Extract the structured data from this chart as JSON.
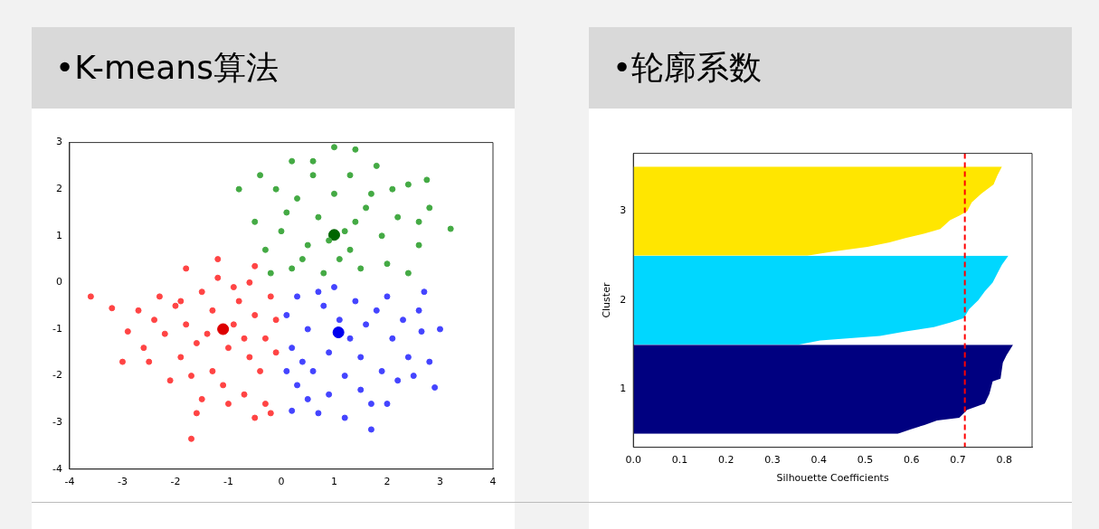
{
  "chart_data": [
    {
      "type": "scatter",
      "title": "•K-means算法",
      "marker": "circle",
      "grid": false,
      "legend": false,
      "xlim": [
        -4,
        4
      ],
      "xticks": [
        -4,
        -3,
        -2,
        -1,
        0,
        1,
        2,
        3,
        4
      ],
      "ylim": [
        -4,
        3
      ],
      "yticks": [
        -4,
        -3,
        -2,
        -1,
        0,
        1,
        2,
        3
      ],
      "series": [
        {
          "color": "#ff4444",
          "x": [
            -1.5,
            -0.8,
            -1.3,
            -0.5,
            -1.8,
            -0.3,
            -1.0,
            -1.6,
            -0.6,
            -1.3,
            -2.0,
            -0.2,
            -1.9,
            -0.9,
            -1.4,
            -0.7,
            -2.2,
            -0.4,
            -1.1,
            -1.7,
            -0.9,
            -1.2,
            -0.6,
            -2.3,
            -2.6,
            -1.5,
            -0.7,
            -0.3,
            -0.1,
            -0.1,
            -2.1,
            -1.8,
            -2.4,
            -2.5,
            -2.9,
            -3.0,
            -3.6,
            -3.2,
            -1.7,
            -1.0,
            -0.5,
            -0.2,
            -1.6,
            -1.2,
            -0.5,
            -2.7,
            -1.9
          ],
          "values": [
            -0.2,
            -0.4,
            -0.6,
            -0.7,
            -0.9,
            -1.2,
            -1.4,
            -1.3,
            -1.6,
            -1.9,
            -0.5,
            -0.3,
            -1.6,
            -0.9,
            -1.1,
            -1.2,
            -1.1,
            -1.9,
            -2.2,
            -2.0,
            -0.1,
            0.1,
            0.0,
            -0.3,
            -1.4,
            -2.5,
            -2.4,
            -2.6,
            -0.8,
            -1.5,
            -2.1,
            0.3,
            -0.8,
            -1.7,
            -1.05,
            -1.7,
            -0.3,
            -0.55,
            -3.35,
            -2.6,
            -2.9,
            -2.8,
            -2.8,
            0.5,
            0.35,
            -0.6,
            -0.4
          ]
        },
        {
          "color": "#4444ff",
          "x": [
            0.3,
            0.8,
            1.4,
            2.0,
            0.5,
            1.6,
            2.1,
            0.2,
            0.9,
            1.5,
            0.6,
            1.2,
            1.9,
            0.3,
            0.9,
            1.5,
            2.3,
            2.4,
            0.1,
            1.1,
            1.8,
            0.7,
            1.3,
            0.4,
            2.2,
            1.7,
            0.7,
            0.2,
            1.2,
            1.7,
            2.6,
            2.7,
            2.65,
            2.8,
            2.9,
            3.0,
            2.5,
            1.0,
            0.1,
            2.0,
            0.5
          ],
          "values": [
            -0.3,
            -0.5,
            -0.4,
            -0.3,
            -1.0,
            -0.9,
            -1.2,
            -1.4,
            -1.5,
            -1.6,
            -1.9,
            -2.0,
            -1.9,
            -2.2,
            -2.4,
            -2.3,
            -0.8,
            -1.6,
            -0.7,
            -0.8,
            -0.6,
            -0.2,
            -1.2,
            -1.7,
            -2.1,
            -2.6,
            -2.8,
            -2.75,
            -2.9,
            -3.15,
            -0.6,
            -0.2,
            -1.05,
            -1.7,
            -2.25,
            -1.0,
            -2.0,
            -0.1,
            -1.9,
            -2.6,
            -2.5
          ]
        },
        {
          "color": "#44aa44",
          "x": [
            0.2,
            0.8,
            1.5,
            2.0,
            0.5,
            1.3,
            1.9,
            0.0,
            0.7,
            1.4,
            2.2,
            0.3,
            1.0,
            1.7,
            0.6,
            1.3,
            2.1,
            -0.3,
            -0.5,
            -0.8,
            -0.4,
            0.2,
            0.6,
            1.0,
            1.4,
            1.8,
            2.75,
            2.8,
            3.2,
            2.6,
            2.4,
            2.6,
            -0.2,
            0.4,
            1.1,
            1.2,
            0.9,
            1.6,
            0.1,
            2.4,
            -0.1
          ],
          "values": [
            0.3,
            0.2,
            0.3,
            0.4,
            0.8,
            0.7,
            1.0,
            1.1,
            1.4,
            1.3,
            1.4,
            1.8,
            1.9,
            1.9,
            2.3,
            2.3,
            2.0,
            0.7,
            1.3,
            2.0,
            2.3,
            2.6,
            2.6,
            2.9,
            2.85,
            2.5,
            2.2,
            1.6,
            1.15,
            0.8,
            0.2,
            1.3,
            0.2,
            0.5,
            0.5,
            1.1,
            0.9,
            1.6,
            1.5,
            2.1,
            2.0
          ]
        },
        {
          "color": "#dd0000",
          "x": [
            -1.1
          ],
          "values": [
            -1.0
          ]
        },
        {
          "color": "#0000ee",
          "x": [
            1.08
          ],
          "values": [
            -1.07
          ]
        },
        {
          "color": "#006600",
          "x": [
            1.0
          ],
          "values": [
            1.02
          ]
        }
      ]
    },
    {
      "type": "area",
      "orientation": "horizontal",
      "title": "•轮廓系数",
      "xlabel": "Silhouette Coefficients",
      "ylabel": "Cluster",
      "grid": false,
      "legend": false,
      "xlim": [
        0,
        0.86
      ],
      "xticks": [
        {
          "value": 0,
          "label": "0.0"
        },
        0.1,
        0.2,
        0.3,
        0.4,
        0.5,
        0.6,
        0.7,
        0.8
      ],
      "ylim": [
        0.35,
        3.65
      ],
      "yticks": [
        1,
        2,
        3
      ],
      "ref_lines": [
        {
          "axis": "x",
          "value": 0.715,
          "color": "#ff0000",
          "line_style": "dashed"
        }
      ],
      "series": [
        {
          "color": "#000080",
          "x": [
            1.5,
            1.385,
            1.3,
            1.12,
            1.09,
            0.95,
            0.84,
            0.77,
            0.68,
            0.65,
            0.6,
            0.55,
            0.5
          ],
          "values": [
            0.819,
            0.805,
            0.797,
            0.792,
            0.775,
            0.768,
            0.758,
            0.72,
            0.703,
            0.655,
            0.628,
            0.597,
            0.57
          ]
        },
        {
          "color": "#00d7ff",
          "x": [
            2.5,
            2.4,
            2.3,
            2.2,
            2.1,
            2.0,
            1.9,
            1.8,
            1.75,
            1.7,
            1.65,
            1.6,
            1.55,
            1.5
          ],
          "values": [
            0.809,
            0.795,
            0.785,
            0.775,
            0.758,
            0.744,
            0.724,
            0.713,
            0.683,
            0.648,
            0.587,
            0.532,
            0.403,
            0.355
          ]
        },
        {
          "color": "#ffe600",
          "x": [
            3.5,
            3.4,
            3.3,
            3.2,
            3.1,
            3.0,
            2.95,
            2.9,
            2.8,
            2.75,
            2.7,
            2.65,
            2.6,
            2.55,
            2.5
          ],
          "values": [
            0.795,
            0.785,
            0.777,
            0.751,
            0.73,
            0.72,
            0.703,
            0.683,
            0.662,
            0.628,
            0.587,
            0.553,
            0.505,
            0.433,
            0.375
          ]
        }
      ]
    }
  ]
}
